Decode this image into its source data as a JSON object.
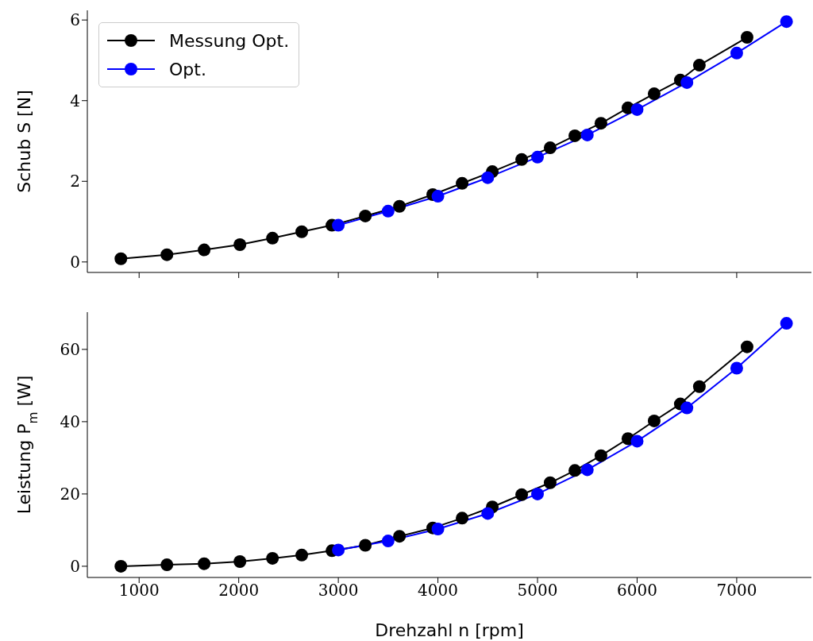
{
  "chart_data": [
    {
      "type": "line",
      "ylabel": "Schub S [N]",
      "xlim": [
        480,
        7750
      ],
      "xticks": [
        1000,
        2000,
        3000,
        4000,
        5000,
        6000,
        7000
      ],
      "ylim": [
        -0.26,
        6.24
      ],
      "yticks": [
        0,
        2,
        4,
        6
      ],
      "tick_labels": "y",
      "legend": "top left",
      "marker": "circle",
      "line_style": "solid",
      "grid": false,
      "series": [
        {
          "name": "Messung Opt.",
          "color": "#000000",
          "x": [
            817,
            1279,
            1653,
            2012,
            2339,
            2633,
            2936,
            3271,
            3614,
            3948,
            4243,
            4546,
            4841,
            5127,
            5375,
            5637,
            5908,
            6171,
            6434,
            6625,
            7104
          ],
          "values": [
            0.08,
            0.18,
            0.3,
            0.43,
            0.59,
            0.75,
            0.91,
            1.14,
            1.38,
            1.67,
            1.95,
            2.24,
            2.54,
            2.83,
            3.13,
            3.44,
            3.82,
            4.17,
            4.51,
            4.88,
            5.57
          ]
        },
        {
          "name": "Opt.",
          "color": "#0000ff",
          "x": [
            3000,
            3500,
            4000,
            4500,
            5000,
            5500,
            6000,
            6500,
            7000,
            7500
          ],
          "values": [
            0.91,
            1.26,
            1.63,
            2.09,
            2.6,
            3.15,
            3.78,
            4.45,
            5.18,
            5.96
          ]
        }
      ]
    },
    {
      "type": "line",
      "xlabel": "Drehzahl n [rpm]",
      "ylabel": "Leistung P$_{m}$ [W]",
      "xlim": [
        480,
        7750
      ],
      "xticks": [
        1000,
        2000,
        3000,
        4000,
        5000,
        6000,
        7000
      ],
      "ylim": [
        -3.1,
        70.3
      ],
      "yticks": [
        0,
        20,
        40,
        60
      ],
      "marker": "circle",
      "line_style": "solid",
      "grid": false,
      "series": [
        {
          "color": "#000000",
          "x": [
            817,
            1279,
            1653,
            2012,
            2339,
            2633,
            2936,
            3271,
            3614,
            3948,
            4243,
            4546,
            4841,
            5127,
            5375,
            5637,
            5908,
            6171,
            6434,
            6625,
            7104
          ],
          "values": [
            0,
            0.4,
            0.7,
            1.3,
            2.2,
            3.1,
            4.3,
            5.8,
            8.3,
            10.6,
            13.3,
            16.4,
            19.8,
            23.1,
            26.5,
            30.6,
            35.3,
            40.2,
            44.9,
            49.7,
            60.7
          ]
        },
        {
          "color": "#0000ff",
          "x": [
            3000,
            3500,
            4000,
            4500,
            5000,
            5500,
            6000,
            6500,
            7000,
            7500
          ],
          "values": [
            4.5,
            7.0,
            10.3,
            14.6,
            20.0,
            26.7,
            34.6,
            43.8,
            54.8,
            67.2
          ]
        }
      ]
    }
  ]
}
